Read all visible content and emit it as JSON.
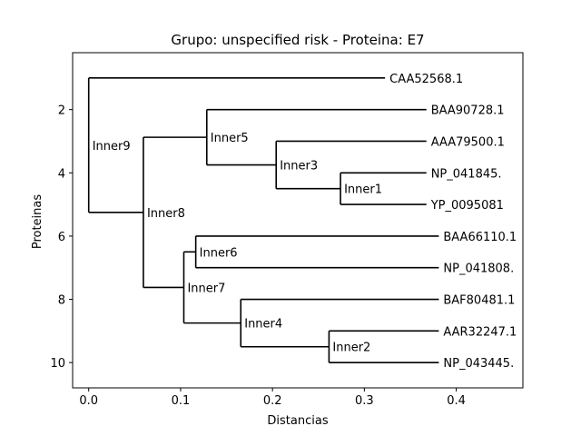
{
  "chart_data": {
    "type": "dendrogram",
    "title": "Grupo: unspecified risk - Proteina: E7",
    "xlabel": "Distancias",
    "ylabel": "Proteinas",
    "xlim": [
      -0.0175,
      0.4725
    ],
    "ylim": [
      10.8,
      0.2
    ],
    "y_inverted": true,
    "xticks": [
      0.0,
      0.1,
      0.2,
      0.3,
      0.4
    ],
    "xtick_labels": [
      "0.0",
      "0.1",
      "0.2",
      "0.3",
      "0.4"
    ],
    "yticks": [
      2,
      4,
      6,
      8,
      10
    ],
    "ytick_labels": [
      "2",
      "4",
      "6",
      "8",
      "10"
    ],
    "grid": false,
    "leaves": [
      {
        "name": "CAA52568.1",
        "y": 1,
        "x": 0.3225
      },
      {
        "name": "BAA90728.1",
        "y": 2,
        "x": 0.3675
      },
      {
        "name": "AAA79500.1",
        "y": 3,
        "x": 0.3675
      },
      {
        "name": "NP_041845.",
        "y": 4,
        "x": 0.3675
      },
      {
        "name": "YP_0095081",
        "y": 5,
        "x": 0.3675
      },
      {
        "name": "BAA66110.1",
        "y": 6,
        "x": 0.381
      },
      {
        "name": "NP_041808.",
        "y": 7,
        "x": 0.381
      },
      {
        "name": "BAF80481.1",
        "y": 8,
        "x": 0.381
      },
      {
        "name": "AAR32247.1",
        "y": 9,
        "x": 0.381
      },
      {
        "name": "NP_043445.",
        "y": 10,
        "x": 0.381
      }
    ],
    "clades": [
      {
        "name": "Inner1",
        "x": 0.274,
        "y1": 4,
        "y2": 5,
        "y": 4.5
      },
      {
        "name": "Inner3",
        "x": 0.204,
        "y1": 3,
        "y2": 4.5,
        "y": 3.75
      },
      {
        "name": "Inner5",
        "x": 0.1285,
        "y1": 2,
        "y2": 3.75,
        "y": 2.875
      },
      {
        "name": "Inner2",
        "x": 0.2615,
        "y1": 9,
        "y2": 10,
        "y": 9.5
      },
      {
        "name": "Inner4",
        "x": 0.1655,
        "y1": 8,
        "y2": 9.5,
        "y": 8.75
      },
      {
        "name": "Inner6",
        "x": 0.1165,
        "y1": 6,
        "y2": 7,
        "y": 6.5
      },
      {
        "name": "Inner7",
        "x": 0.1035,
        "y1": 6.5,
        "y2": 8.75,
        "y": 7.625
      },
      {
        "name": "Inner8",
        "x": 0.0595,
        "y1": 2.875,
        "y2": 7.625,
        "y": 5.25
      },
      {
        "name": "Inner9",
        "x": 0.0,
        "y1": 1,
        "y2": 5.25,
        "y": 3.125
      }
    ]
  }
}
